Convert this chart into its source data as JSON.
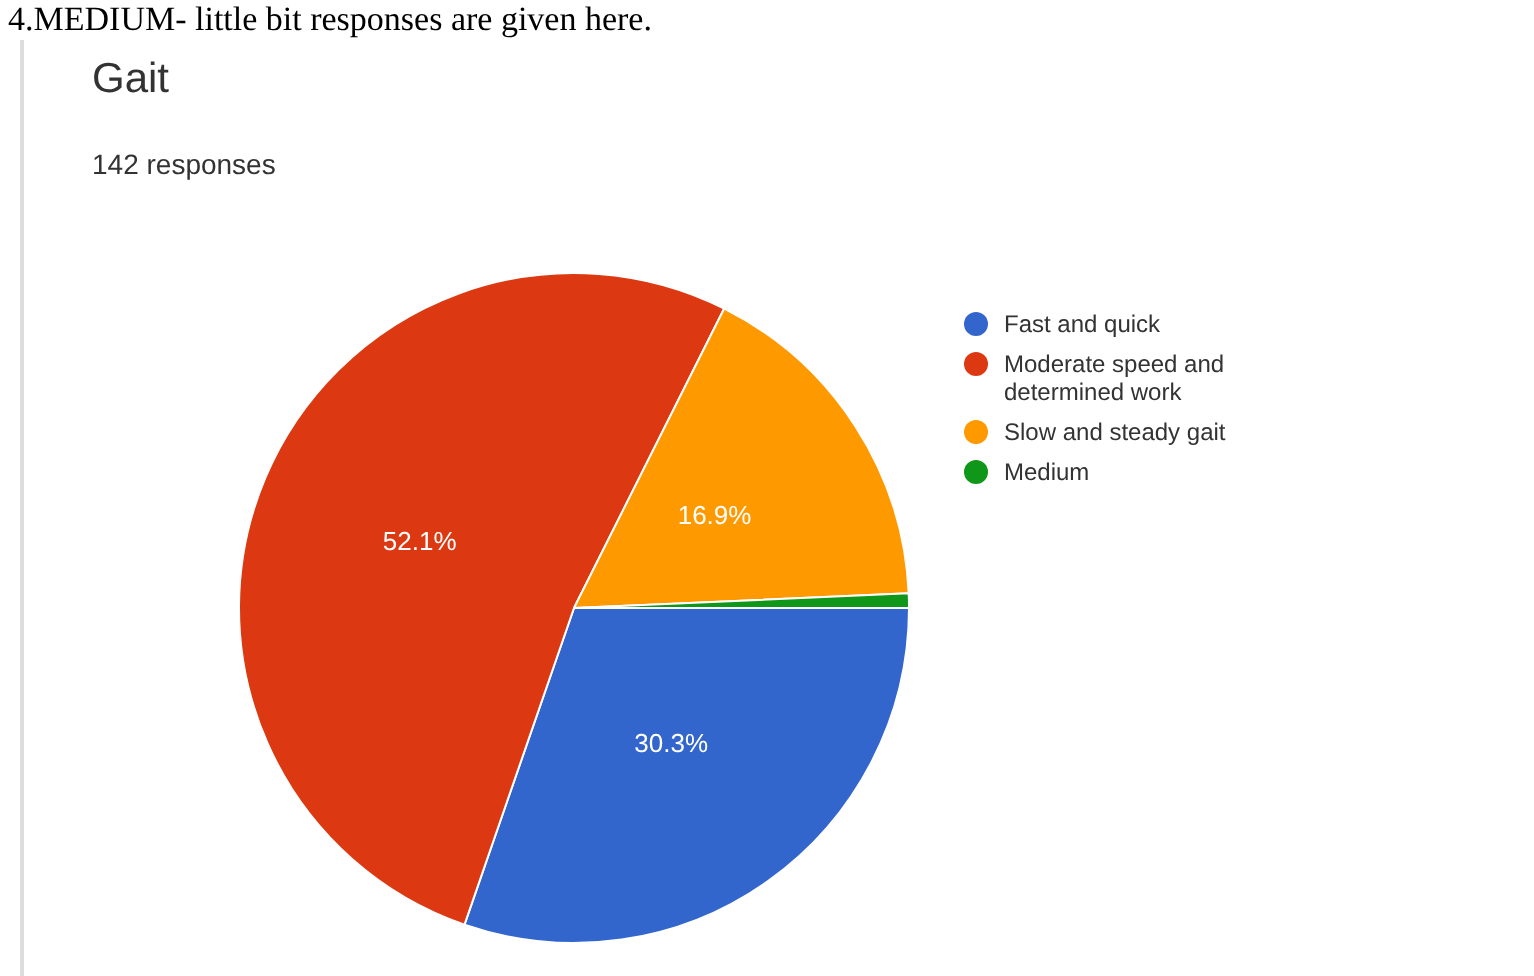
{
  "chart_data": {
    "type": "pie",
    "title": "Gait",
    "subtitle": "142 responses",
    "annotations": [
      "4.MEDIUM- little bit responses are given here."
    ],
    "categories": [
      "Fast and quick",
      "Moderate speed and determined work",
      "Slow and steady gait",
      "Medium"
    ],
    "values": [
      30.3,
      52.1,
      16.9,
      0.7
    ],
    "colors": [
      "#3366cc",
      "#dc3912",
      "#ff9900",
      "#109618"
    ],
    "value_labels": [
      "30.3%",
      "52.1%",
      "16.9%",
      null
    ],
    "legend": "right"
  }
}
